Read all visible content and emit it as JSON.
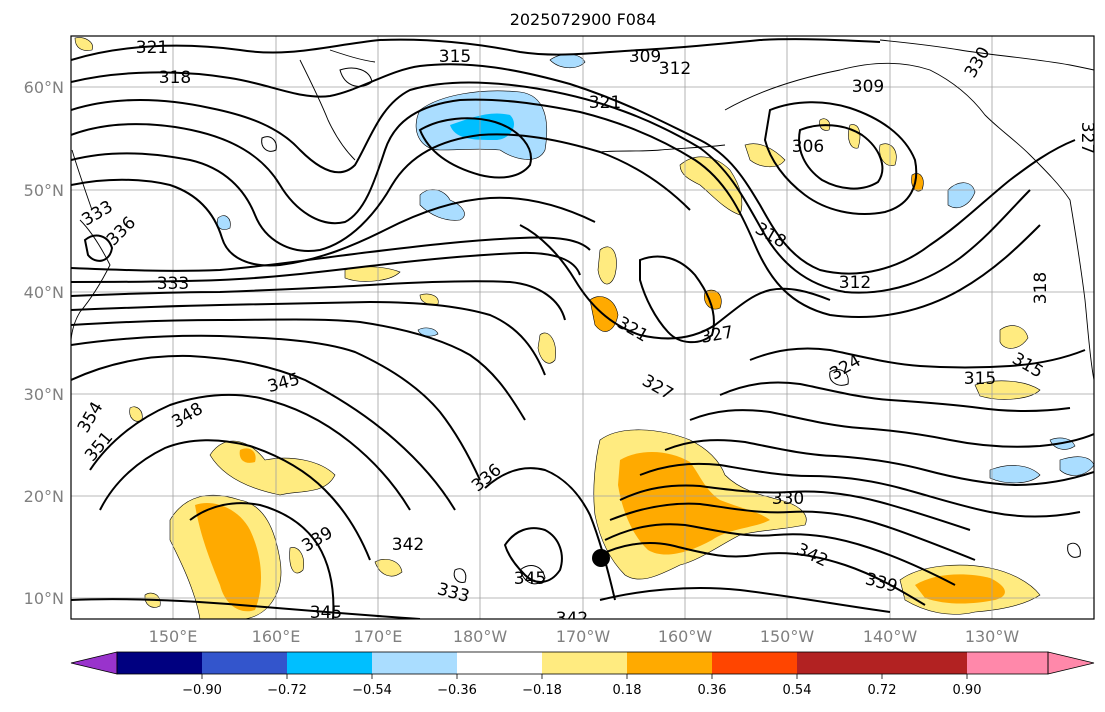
{
  "title": "2025072900 F084",
  "lat_labels": [
    "60°N",
    "50°N",
    "40°N",
    "30°N",
    "20°N",
    "10°N"
  ],
  "lon_labels": [
    "150°E",
    "160°E",
    "170°E",
    "180°W",
    "170°W",
    "160°W",
    "150°W",
    "140°W",
    "130°W"
  ],
  "contour_labels": [
    "321",
    "318",
    "315",
    "309",
    "312",
    "309",
    "321",
    "306",
    "327",
    "330",
    "333",
    "336",
    "318",
    "312",
    "333",
    "321",
    "327",
    "324",
    "318",
    "315",
    "315",
    "345",
    "327",
    "354",
    "348",
    "351",
    "336",
    "330",
    "339",
    "342",
    "345",
    "342",
    "339",
    "333",
    "345",
    "342"
  ],
  "colorbar": {
    "colors": [
      "#9933cc",
      "#000080",
      "#3355cc",
      "#00bfff",
      "#aaddff",
      "#ffffff",
      "#ffeb80",
      "#ffaa00",
      "#ff4500",
      "#b22222",
      "#ff88aa"
    ],
    "tick_labels": [
      "−0.90",
      "−0.72",
      "−0.54",
      "−0.36",
      "−0.18",
      "0.18",
      "0.36",
      "0.54",
      "0.72",
      "0.90"
    ]
  },
  "marker": "storm-position-dot"
}
